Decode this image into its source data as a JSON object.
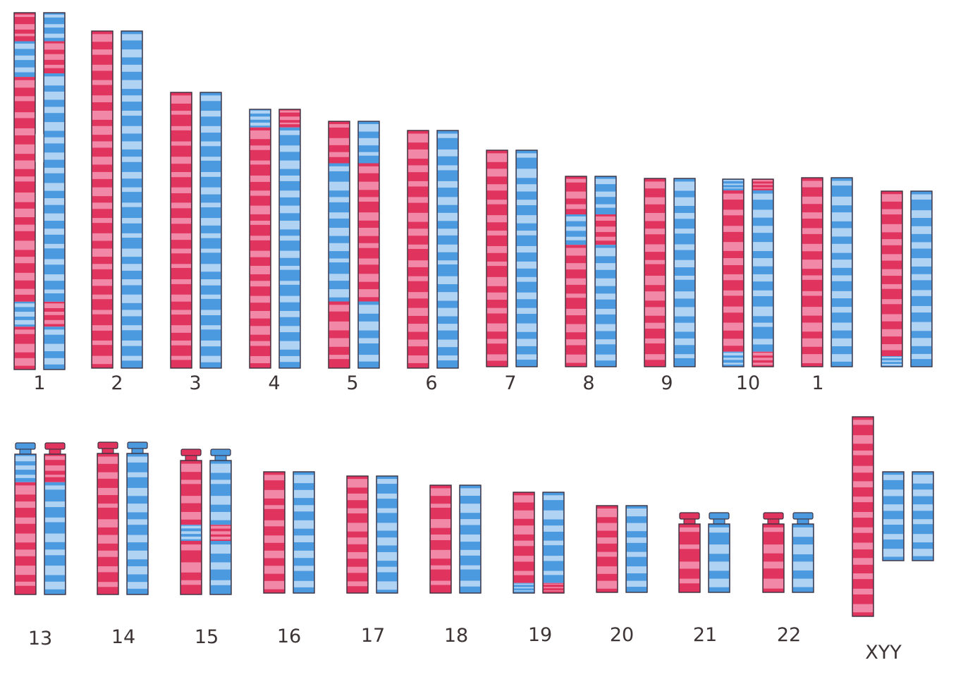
{
  "colors": {
    "maternal": "#e0335d",
    "maternal_band": "#f598b4",
    "paternal": "#4b9ae0",
    "paternal_band": "#c2dcf6",
    "outline": "#3a3040"
  },
  "chromosomes": [
    {
      "label": "1",
      "row": 1,
      "pair": [
        {
          "color": "red-blue-mix",
          "segments": [
            [
              "red",
              0,
              0.08
            ],
            [
              "blue",
              0.08,
              0.18
            ],
            [
              "red",
              0.18,
              0.81
            ],
            [
              "blue",
              0.81,
              0.88
            ],
            [
              "red",
              0.88,
              1
            ]
          ]
        },
        {
          "color": "blue-red-mix",
          "segments": [
            [
              "blue",
              0,
              0.08
            ],
            [
              "red",
              0.08,
              0.17
            ],
            [
              "blue",
              0.17,
              0.81
            ],
            [
              "red",
              0.81,
              0.88
            ],
            [
              "blue",
              0.88,
              1
            ]
          ]
        }
      ]
    },
    {
      "label": "2",
      "row": 1,
      "pair": [
        {
          "segments": [
            [
              "red",
              0,
              1
            ]
          ]
        },
        {
          "segments": [
            [
              "blue",
              0,
              1
            ]
          ]
        }
      ]
    },
    {
      "label": "3",
      "row": 1,
      "pair": [
        {
          "segments": [
            [
              "red",
              0,
              1
            ]
          ]
        },
        {
          "segments": [
            [
              "blue",
              0,
              1
            ]
          ]
        }
      ]
    },
    {
      "label": "4",
      "row": 1,
      "pair": [
        {
          "segments": [
            [
              "blue",
              0,
              0.07
            ],
            [
              "red",
              0.07,
              1
            ]
          ]
        },
        {
          "segments": [
            [
              "red",
              0,
              0.07
            ],
            [
              "blue",
              0.07,
              1
            ]
          ]
        }
      ]
    },
    {
      "label": "5",
      "row": 1,
      "pair": [
        {
          "segments": [
            [
              "red",
              0,
              0.17
            ],
            [
              "blue",
              0.17,
              0.73
            ],
            [
              "red",
              0.73,
              1
            ]
          ]
        },
        {
          "segments": [
            [
              "blue",
              0,
              0.17
            ],
            [
              "red",
              0.17,
              0.73
            ],
            [
              "blue",
              0.73,
              1
            ]
          ]
        }
      ]
    },
    {
      "label": "6",
      "row": 1,
      "pair": [
        {
          "segments": [
            [
              "red",
              0,
              1
            ]
          ]
        },
        {
          "segments": [
            [
              "blue",
              0,
              1
            ]
          ]
        }
      ]
    },
    {
      "label": "7",
      "row": 1,
      "pair": [
        {
          "segments": [
            [
              "red",
              0,
              1
            ]
          ]
        },
        {
          "segments": [
            [
              "blue",
              0,
              1
            ]
          ]
        }
      ]
    },
    {
      "label": "8",
      "row": 1,
      "pair": [
        {
          "segments": [
            [
              "red",
              0,
              0.2
            ],
            [
              "blue",
              0.2,
              0.36
            ],
            [
              "red",
              0.36,
              1
            ]
          ]
        },
        {
          "segments": [
            [
              "blue",
              0,
              0.2
            ],
            [
              "red",
              0.2,
              0.36
            ],
            [
              "blue",
              0.36,
              1
            ]
          ]
        }
      ]
    },
    {
      "label": "9",
      "row": 1,
      "pair": [
        {
          "segments": [
            [
              "red",
              0,
              1
            ]
          ]
        },
        {
          "segments": [
            [
              "blue",
              0,
              1
            ]
          ]
        }
      ]
    },
    {
      "label": "10",
      "row": 1,
      "pair": [
        {
          "segments": [
            [
              "blue",
              0,
              0.06
            ],
            [
              "red",
              0.06,
              0.92
            ],
            [
              "blue",
              0.92,
              1
            ]
          ]
        },
        {
          "segments": [
            [
              "red",
              0,
              0.06
            ],
            [
              "blue",
              0.06,
              0.92
            ],
            [
              "red",
              0.92,
              1
            ]
          ]
        }
      ]
    },
    {
      "label": "1",
      "row": 1,
      "pair": [
        {
          "segments": [
            [
              "red",
              0,
              1
            ]
          ]
        },
        {
          "segments": [
            [
              "blue",
              0,
              1
            ]
          ]
        }
      ]
    },
    {
      "label": "",
      "row": 1,
      "pair": [
        {
          "segments": [
            [
              "red",
              0,
              0.94
            ],
            [
              "blue",
              0.94,
              1
            ]
          ]
        },
        {
          "segments": [
            [
              "blue",
              0,
              1
            ]
          ]
        }
      ]
    },
    {
      "label": "13",
      "row": 2,
      "pair": [
        {
          "segments": [
            [
              "blue",
              0,
              0.2
            ],
            [
              "red",
              0.2,
              1
            ]
          ]
        },
        {
          "segments": [
            [
              "red",
              0,
              0.2
            ],
            [
              "blue",
              0.2,
              1
            ]
          ]
        }
      ]
    },
    {
      "label": "14",
      "row": 2,
      "pair": [
        {
          "segments": [
            [
              "red",
              0,
              1
            ]
          ]
        },
        {
          "segments": [
            [
              "blue",
              0,
              1
            ]
          ]
        }
      ]
    },
    {
      "label": "15",
      "row": 2,
      "pair": [
        {
          "segments": [
            [
              "red",
              0,
              0.48
            ],
            [
              "blue",
              0.48,
              0.6
            ],
            [
              "red",
              0.6,
              1
            ]
          ]
        },
        {
          "segments": [
            [
              "blue",
              0,
              0.48
            ],
            [
              "red",
              0.48,
              0.6
            ],
            [
              "blue",
              0.6,
              1
            ]
          ]
        }
      ]
    },
    {
      "label": "16",
      "row": 2,
      "pair": [
        {
          "segments": [
            [
              "red",
              0,
              1
            ]
          ]
        },
        {
          "segments": [
            [
              "blue",
              0,
              1
            ]
          ]
        }
      ]
    },
    {
      "label": "17",
      "row": 2,
      "pair": [
        {
          "segments": [
            [
              "red",
              0,
              1
            ]
          ]
        },
        {
          "segments": [
            [
              "blue",
              0,
              1
            ]
          ]
        }
      ]
    },
    {
      "label": "18",
      "row": 2,
      "pair": [
        {
          "segments": [
            [
              "red",
              0,
              1
            ]
          ]
        },
        {
          "segments": [
            [
              "blue",
              0,
              1
            ]
          ]
        }
      ]
    },
    {
      "label": "19",
      "row": 2,
      "pair": [
        {
          "segments": [
            [
              "red",
              0,
              0.9
            ],
            [
              "blue",
              0.9,
              1
            ]
          ]
        },
        {
          "segments": [
            [
              "blue",
              0,
              0.9
            ],
            [
              "red",
              0.9,
              1
            ]
          ]
        }
      ]
    },
    {
      "label": "20",
      "row": 2,
      "pair": [
        {
          "segments": [
            [
              "red",
              0,
              1
            ]
          ]
        },
        {
          "segments": [
            [
              "blue",
              0,
              1
            ]
          ]
        }
      ]
    },
    {
      "label": "21",
      "row": 2,
      "pair": [
        {
          "segments": [
            [
              "red",
              0,
              1
            ]
          ]
        },
        {
          "segments": [
            [
              "blue",
              0,
              1
            ]
          ]
        }
      ]
    },
    {
      "label": "22",
      "row": 2,
      "pair": [
        {
          "segments": [
            [
              "red",
              0,
              1
            ]
          ]
        },
        {
          "segments": [
            [
              "blue",
              0,
              1
            ]
          ]
        }
      ]
    },
    {
      "label": "XYY",
      "row": 2,
      "pair": [
        {
          "segments": [
            [
              "red",
              0,
              1
            ]
          ]
        },
        {
          "segments": [
            [
              "blue",
              0,
              1
            ]
          ]
        },
        {
          "segments": [
            [
              "blue",
              0,
              1
            ]
          ]
        }
      ]
    }
  ]
}
